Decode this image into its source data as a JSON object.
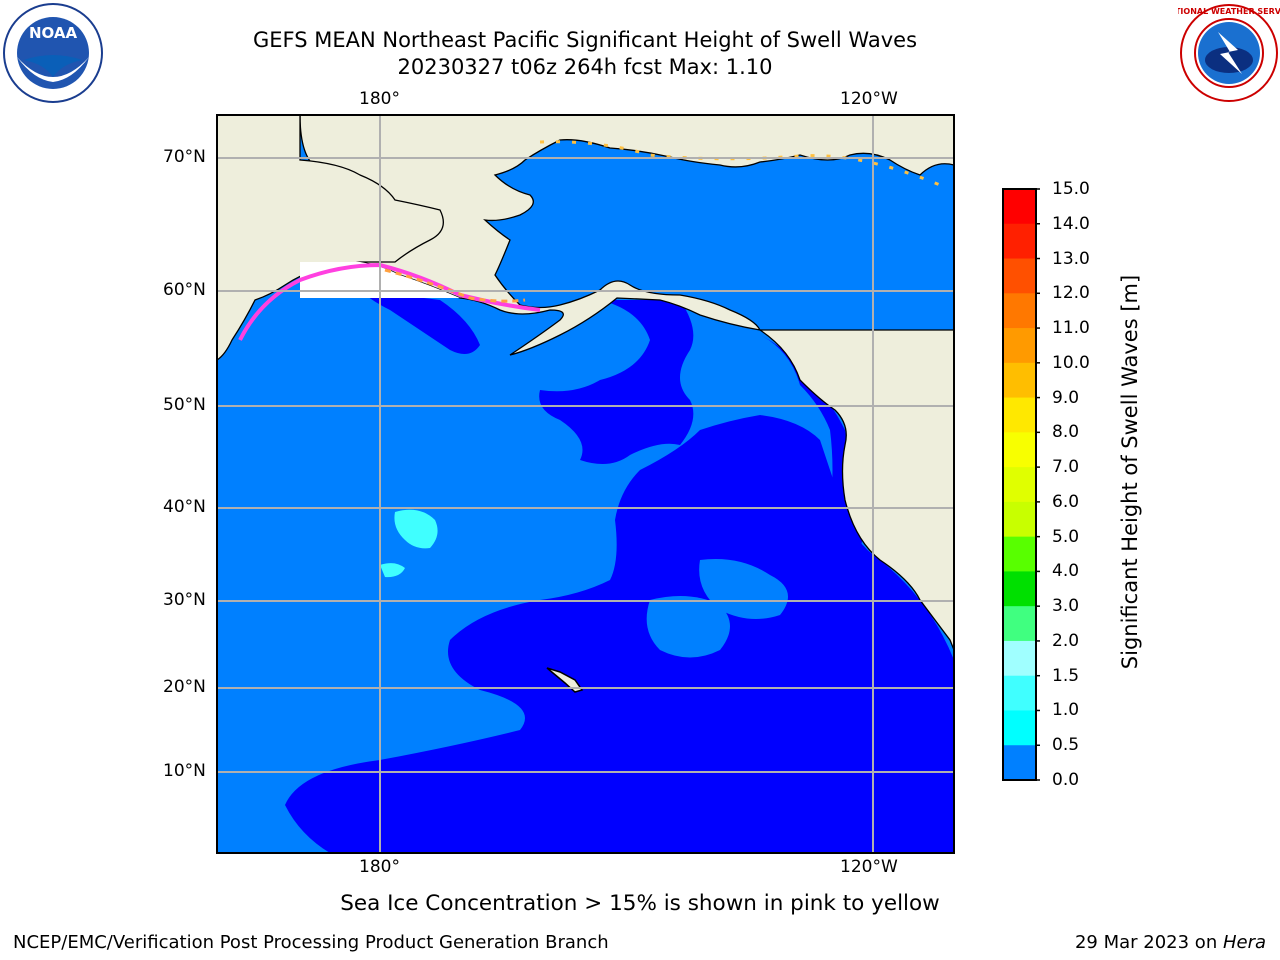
{
  "header": {
    "title_line1": "GEFS MEAN Northeast Pacific Significant Height of Swell Waves",
    "title_line2": "20230327 t06z 264h fcst   Max: 1.10"
  },
  "logos": {
    "left": "NOAA",
    "right": "NATIONAL WEATHER SERVICE"
  },
  "map": {
    "top_lon_labels": [
      "180°",
      "120°W"
    ],
    "bottom_lon_labels": [
      "180°",
      "120°W"
    ],
    "lat_labels": [
      "70°N",
      "60°N",
      "50°N",
      "40°N",
      "30°N",
      "20°N",
      "10°N"
    ],
    "colors": {
      "land": "#eeeedc",
      "ocean_low": "#0000ff",
      "ocean_mid": "#0080ff",
      "cyan": "#40ffff",
      "grid": "#b0b0b0",
      "ice_pink": "#ff40e0",
      "ice_orange": "#ffa040"
    }
  },
  "colorbar": {
    "title": "Significant Height of Swell Waves [m]",
    "ticks": [
      "15.0",
      "14.0",
      "13.0",
      "12.0",
      "11.0",
      "10.0",
      "9.0",
      "8.0",
      "7.0",
      "6.0",
      "5.0",
      "4.0",
      "3.0",
      "2.0",
      "1.5",
      "1.0",
      "0.5",
      "0.0"
    ],
    "colors": [
      "#ff0000",
      "#ff2000",
      "#ff5000",
      "#ff7800",
      "#ff9a00",
      "#ffbe00",
      "#ffe800",
      "#f8ff00",
      "#e0ff00",
      "#c8ff00",
      "#58ff00",
      "#00e000",
      "#40ff80",
      "#a0ffff",
      "#40ffff",
      "#00ffff",
      "#0080ff",
      "#0000ff"
    ]
  },
  "caption": "Sea Ice Concentration > 15% is shown in pink to yellow",
  "footer": {
    "left": "NCEP/EMC/Verification Post Processing Product Generation Branch",
    "date": "29 Mar 2023 on ",
    "machine": "Hera"
  }
}
